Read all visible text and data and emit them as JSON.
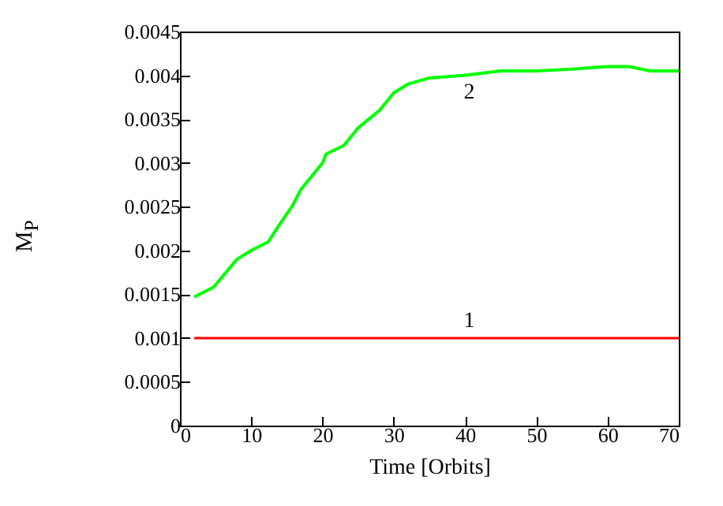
{
  "chart_data": {
    "type": "line",
    "xlabel": "Time [Orbits]",
    "ylabel": "M$_{P}$",
    "xlim": [
      0,
      70
    ],
    "xticks": [
      0,
      10,
      20,
      30,
      40,
      50,
      60,
      70
    ],
    "ylim": [
      0,
      0.0045
    ],
    "yticks": [
      0,
      0.0005,
      0.001,
      0.0015,
      0.002,
      0.0025,
      0.003,
      0.0035,
      0.004,
      0.0045
    ],
    "grid": false,
    "line_style": "solid",
    "series": [
      {
        "name": "1",
        "color": "#ff0000",
        "x": [
          2,
          70
        ],
        "values": [
          0.001,
          0.001
        ]
      },
      {
        "name": "2",
        "color": "#00ff00",
        "x": [
          2,
          4.7,
          8,
          10,
          12.4,
          14,
          15.7,
          17,
          19,
          20,
          20.5,
          23,
          25,
          26.5,
          28,
          29,
          30,
          32,
          35,
          40,
          45,
          50,
          55,
          60,
          63,
          66,
          70
        ],
        "values": [
          0.00147,
          0.00158,
          0.0019,
          0.002,
          0.0021,
          0.0023,
          0.0025,
          0.0027,
          0.0029,
          0.003,
          0.0031,
          0.0032,
          0.0034,
          0.0035,
          0.0036,
          0.0037,
          0.0038,
          0.0039,
          0.00397,
          0.004,
          0.00405,
          0.00405,
          0.00407,
          0.0041,
          0.0041,
          0.00405,
          0.00405
        ]
      }
    ]
  }
}
